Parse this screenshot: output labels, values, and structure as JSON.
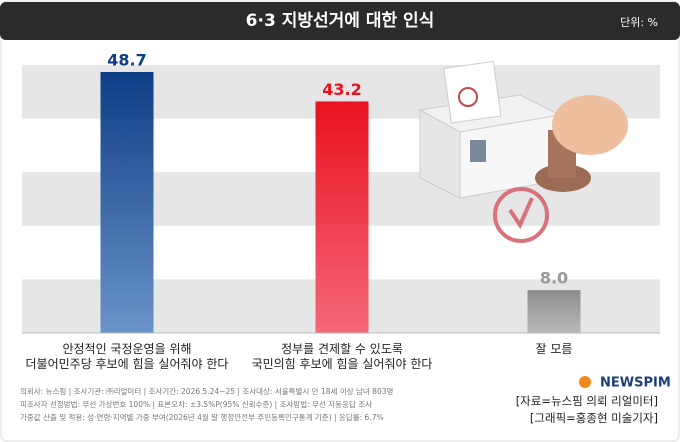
{
  "chart_data": {
    "type": "bar",
    "title": "6·3 지방선거에 대한 인식",
    "unit": "단위: %",
    "categories": [
      "안정적인 국정운영을 위해\n더불어민주당 후보에 힘을 실어줘야 한다",
      "정부를 견제할 수 있도록\n국민의힘 후보에 힘을 실어줘야 한다",
      "잘 모름"
    ],
    "values": [
      48.7,
      43.2,
      8.0
    ],
    "value_labels": [
      "48.7",
      "43.2",
      "8.0"
    ],
    "colors": [
      "#0d3d85",
      "#e8111f",
      "#9a9a9a"
    ],
    "ylim": [
      0,
      50
    ],
    "yticks": [
      0,
      10,
      20,
      30,
      40,
      50
    ],
    "notes": [
      "의뢰사: 뉴스핌 | 조사기관: ㈜리얼미터 | 조사기간: 2026.5.24~25 | 조사대상: 서울특별시 만 18세 이상 남녀 803명",
      "피조사자 선정방법: 무선 가상번호 100% | 표본오차: ±3.5%P(95% 신뢰수준) | 조사방법: 무선 자동응답 조사",
      "가중값 산출 및 적용: 성·연령·지역별 가중 부여(2026년 4월 말 행정안전부 주민등록인구통계 기준) | 응답률: 6.7%"
    ],
    "logo": "NEWSPIM",
    "credits": [
      "[자료=뉴스핌 의뢰 리얼미터]",
      "[그래픽=홍종현 미술기자]"
    ]
  }
}
